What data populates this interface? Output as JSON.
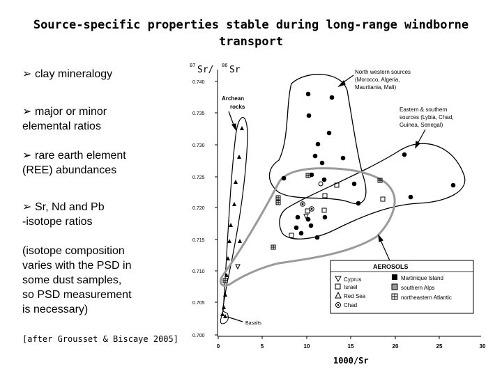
{
  "title_line1": "Source-specific properties stable during long-range windborne",
  "title_line2": "transport",
  "bullets": [
    "clay mineralogy",
    "major or minor",
    "elemental ratios",
    "rare earth element",
    "(REE) abundances",
    "Sr, Nd and Pb",
    "-isotope ratios"
  ],
  "note_lines": [
    "(isotope composition",
    "varies with the PSD in",
    "some dust samples,",
    "so PSD measurement",
    "is necessary)"
  ],
  "citation": "[after Grousset & Biscaye 2005]",
  "plot": {
    "y_axis_label_a": "87",
    "y_axis_label_b": "Sr/",
    "y_axis_label_c": "86",
    "y_axis_label_d": "Sr",
    "x_axis_label": "1000/Sr",
    "y_ticks": [
      "0.740",
      "0.735",
      "0.730",
      "0.725",
      "0.720",
      "0.715",
      "0.710",
      "0.705",
      "0.700"
    ],
    "x_ticks": [
      "0",
      "5",
      "10",
      "15",
      "20",
      "25",
      "30"
    ],
    "archean_label_1": "Archean",
    "archean_label_2": "rocks",
    "basalts_label": "Basalts",
    "nw_label": [
      "North western sources",
      "(Morocco, Algeria,",
      "Mauritania, Mali)"
    ],
    "es_label": [
      "Eastern & southern",
      "sources (Lybia, Chad,",
      "Guinea, Senegal)"
    ],
    "legend_title": "AEROSOLS",
    "legend_left": [
      "Cyprus",
      "Israel",
      "Red Sea",
      "Chad"
    ],
    "legend_right": [
      "Martinique Island",
      "southern Alps",
      "northeastern Atlantic"
    ]
  },
  "colors": {
    "envelope_gray": "#9a9a9a",
    "ink": "#000000"
  }
}
